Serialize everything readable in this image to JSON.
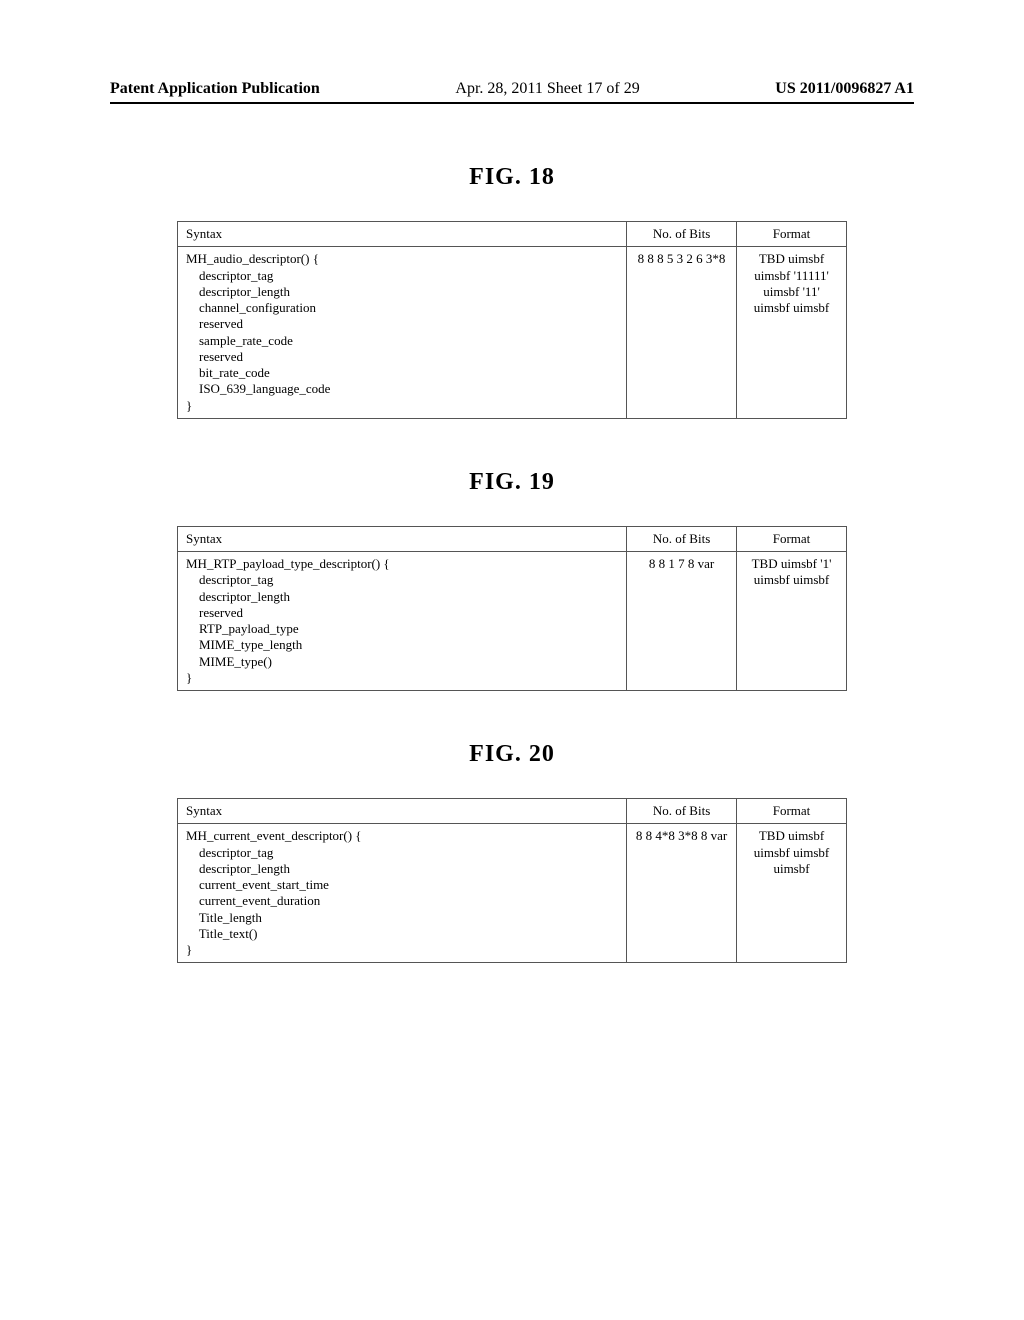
{
  "header": {
    "left": "Patent Application Publication",
    "mid": "Apr. 28, 2011  Sheet 17 of 29",
    "right": "US 2011/0096827 A1"
  },
  "figures": [
    {
      "caption": "FIG. 18",
      "columns": [
        "Syntax",
        "No. of Bits",
        "Format"
      ],
      "syntax_lines": [
        "MH_audio_descriptor() {",
        "    descriptor_tag",
        "    descriptor_length",
        "    channel_configuration",
        "    reserved",
        "    sample_rate_code",
        "    reserved",
        "    bit_rate_code",
        "    ISO_639_language_code",
        "}"
      ],
      "bits_lines": [
        "",
        "8",
        "8",
        "8",
        "5",
        "3",
        "2",
        "6",
        "3*8",
        ""
      ],
      "format_lines": [
        "",
        "TBD",
        "uimsbf",
        "uimsbf",
        "'11111'",
        "uimsbf",
        "'11'",
        "uimsbf",
        "uimsbf",
        ""
      ]
    },
    {
      "caption": "FIG. 19",
      "columns": [
        "Syntax",
        "No. of Bits",
        "Format"
      ],
      "syntax_lines": [
        "MH_RTP_payload_type_descriptor() {",
        "    descriptor_tag",
        "    descriptor_length",
        "    reserved",
        "    RTP_payload_type",
        "    MIME_type_length",
        "    MIME_type()",
        "}"
      ],
      "bits_lines": [
        "",
        "8",
        "8",
        "1",
        "7",
        "8",
        "var",
        ""
      ],
      "format_lines": [
        "",
        "TBD",
        "uimsbf",
        "'1'",
        "uimsbf",
        "uimsbf",
        "",
        ""
      ]
    },
    {
      "caption": "FIG. 20",
      "columns": [
        "Syntax",
        "No. of Bits",
        "Format"
      ],
      "syntax_lines": [
        "MH_current_event_descriptor() {",
        "    descriptor_tag",
        "    descriptor_length",
        "    current_event_start_time",
        "    current_event_duration",
        "    Title_length",
        "    Title_text()",
        "}"
      ],
      "bits_lines": [
        "",
        "8",
        "8",
        "4*8",
        "3*8",
        "8",
        "var",
        ""
      ],
      "format_lines": [
        "",
        "TBD",
        "uimsbf",
        "uimsbf",
        "uimsbf",
        "uimsbf",
        "",
        ""
      ]
    }
  ]
}
